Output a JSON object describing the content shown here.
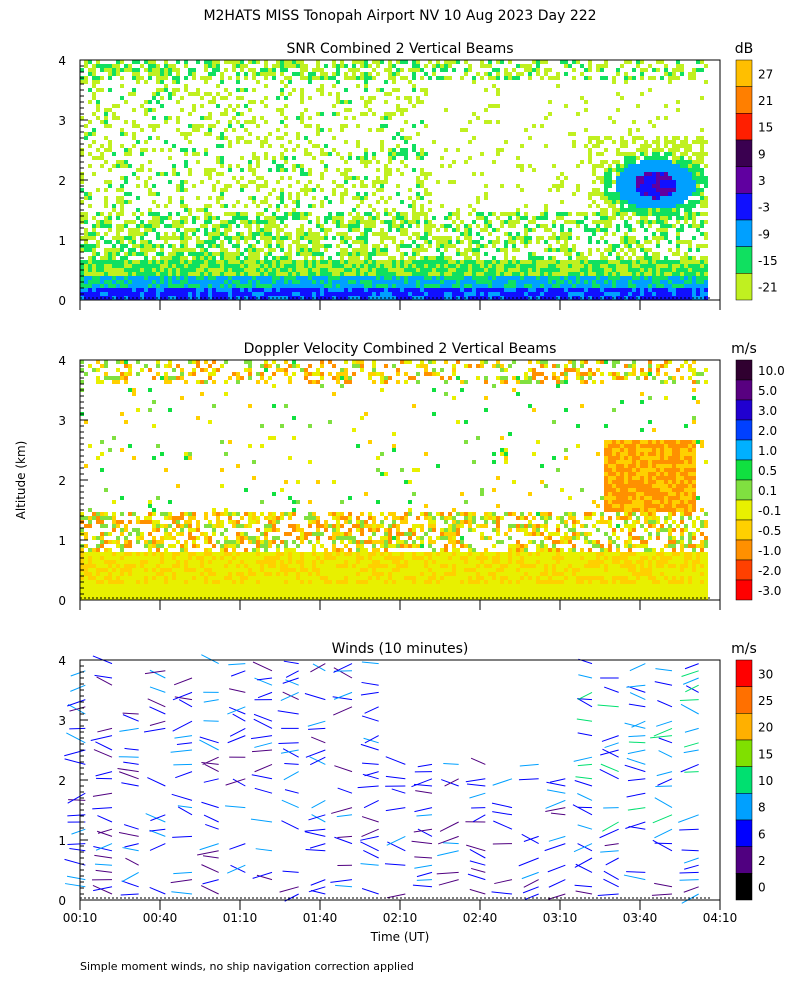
{
  "title": "M2HATS MISS Tonopah Airport NV  10 Aug 2023 Day 222",
  "ylabel": "Altitude (km)",
  "xlabel": "Time (UT)",
  "footnote": "Simple moment winds, no ship navigation correction applied",
  "x_ticks": [
    "00:10",
    "00:40",
    "01:10",
    "01:40",
    "02:10",
    "02:40",
    "03:10",
    "03:40",
    "04:10"
  ],
  "y_ticks": [
    "0",
    "1",
    "2",
    "3",
    "4"
  ],
  "chart_data": [
    {
      "type": "heatmap",
      "title": "SNR Combined 2 Vertical Beams",
      "unit": "dB",
      "x_range_minutes": [
        10,
        250
      ],
      "y_range_km": [
        0,
        4
      ],
      "colorbar": {
        "labels": [
          "27",
          "21",
          "15",
          "9",
          "3",
          "-3",
          "-9",
          "-15",
          "-21"
        ],
        "colors": [
          "#ffbf00",
          "#ff7f00",
          "#ff1f00",
          "#3a0050",
          "#6000a0",
          "#1010ff",
          "#00a0ff",
          "#10e060",
          "#c0f020"
        ]
      }
    },
    {
      "type": "heatmap",
      "title": "Doppler Velocity Combined 2 Vertical Beams",
      "unit": "m/s",
      "x_range_minutes": [
        10,
        250
      ],
      "y_range_km": [
        0,
        4
      ],
      "colorbar": {
        "labels": [
          "10.0",
          "5.0",
          "3.0",
          "2.0",
          "1.0",
          "0.5",
          "0.1",
          "-0.1",
          "-0.5",
          "-1.0",
          "-2.0",
          "-3.0"
        ],
        "colors": [
          "#300030",
          "#580080",
          "#2000d0",
          "#0040ff",
          "#00b0ff",
          "#10e040",
          "#80e040",
          "#e8f000",
          "#ffd000",
          "#ff9000",
          "#ff4000",
          "#ff0000"
        ]
      }
    },
    {
      "type": "scatter",
      "title": "Winds (10 minutes)",
      "unit": "m/s",
      "x_range_minutes": [
        10,
        250
      ],
      "y_range_km": [
        0,
        4
      ],
      "colorbar": {
        "labels": [
          "30",
          "25",
          "20",
          "15",
          "10",
          "8",
          "6",
          "2",
          "0"
        ],
        "colors": [
          "#ff0000",
          "#ff7000",
          "#ffb000",
          "#80e000",
          "#00e070",
          "#00a0ff",
          "#0000ff",
          "#500080",
          "#000000"
        ]
      }
    }
  ]
}
